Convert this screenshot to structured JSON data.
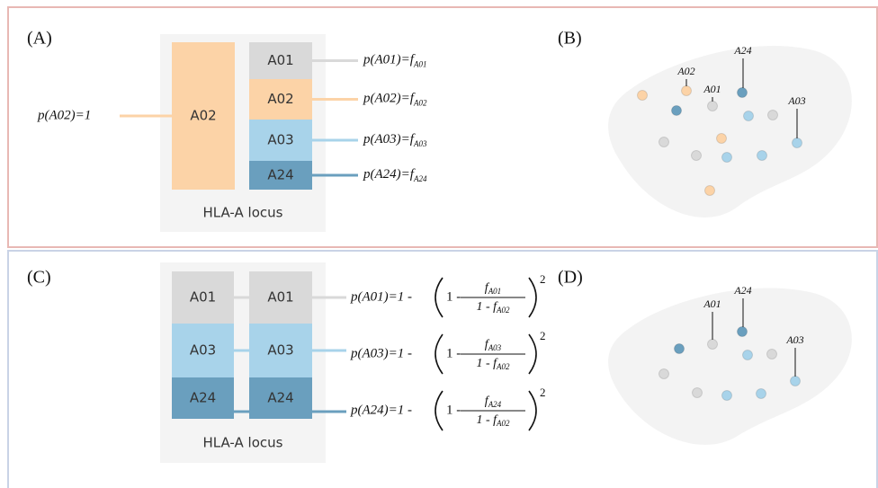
{
  "panel_a": {
    "label": "(A)",
    "left_formula": "p(A02)=1",
    "column_left": [
      "A02"
    ],
    "column_right": [
      "A01",
      "A02",
      "A03",
      "A24"
    ],
    "locus": "HLA-A locus",
    "formulas": [
      {
        "lhs": "p(A01)=f",
        "sub": "A01"
      },
      {
        "lhs": "p(A02)=f",
        "sub": "A02"
      },
      {
        "lhs": "p(A03)=f",
        "sub": "A03"
      },
      {
        "lhs": "p(A24)=f",
        "sub": "A24"
      }
    ]
  },
  "panel_b": {
    "label": "(B)",
    "labels": [
      "A02",
      "A01",
      "A24",
      "A03"
    ]
  },
  "panel_c": {
    "label": "(C)",
    "column_left": [
      "A01",
      "A03",
      "A24"
    ],
    "column_right": [
      "A01",
      "A03",
      "A24"
    ],
    "locus": "HLA-A locus",
    "formulas": [
      {
        "lhs": "p(A01)=1 -",
        "inner": "1 -",
        "num": "f",
        "num_sub": "A01",
        "den": "1 - f",
        "den_sub": "A02",
        "exp": "2"
      },
      {
        "lhs": "p(A03)=1 -",
        "inner": "1 -",
        "num": "f",
        "num_sub": "A03",
        "den": "1 - f",
        "den_sub": "A02",
        "exp": "2"
      },
      {
        "lhs": "p(A24)=1 -",
        "inner": "1 -",
        "num": "f",
        "num_sub": "A24",
        "den": "1 - f",
        "den_sub": "A02",
        "exp": "2"
      }
    ]
  },
  "panel_d": {
    "label": "(D)",
    "labels": [
      "A01",
      "A24",
      "A03"
    ]
  }
}
